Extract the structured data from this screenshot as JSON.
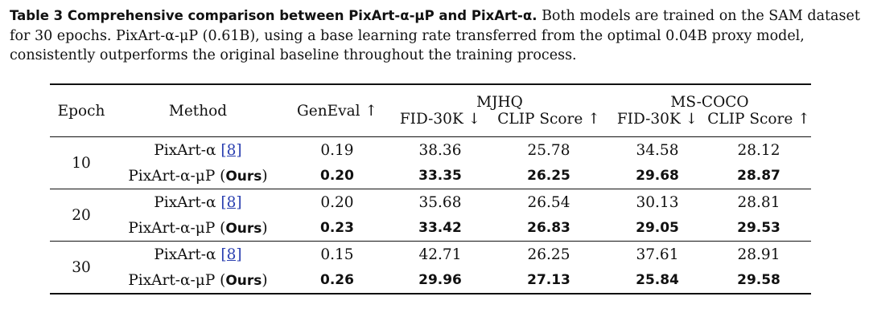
{
  "caption": {
    "label": "Table 3  Comprehensive comparison between PixArt-α-μP and PixArt-α.",
    "text": " Both models are trained on the SAM dataset for 30 epochs. PixArt-α-μP (0.61B), using a base learning rate transferred from the optimal 0.04B proxy model, consistently outperforms the original baseline throughout the training process."
  },
  "table": {
    "headers": {
      "epoch": "Epoch",
      "method": "Method",
      "geneval": "GenEval ↑",
      "mjhq": "MJHQ",
      "mscoco": "MS-COCO",
      "fid_mjhq": "FID-30K ↓",
      "clip_mjhq": "CLIP Score ↑",
      "fid_coco": "FID-30K ↓",
      "clip_coco": "CLIP Score ↑"
    },
    "groups": [
      {
        "epoch": "10",
        "rows": [
          {
            "method": "PixArt-α",
            "ref": "[8]",
            "ours": "",
            "geneval": "0.19",
            "fid_mjhq": "38.36",
            "clip_mjhq": "25.78",
            "fid_coco": "34.58",
            "clip_coco": "28.12"
          },
          {
            "method": "PixArt-α-μP (",
            "ref": "",
            "ours": "Ours",
            "geneval": "0.20",
            "fid_mjhq": "33.35",
            "clip_mjhq": "26.25",
            "fid_coco": "29.68",
            "clip_coco": "28.87"
          }
        ]
      },
      {
        "epoch": "20",
        "rows": [
          {
            "method": "PixArt-α",
            "ref": "[8]",
            "ours": "",
            "geneval": "0.20",
            "fid_mjhq": "35.68",
            "clip_mjhq": "26.54",
            "fid_coco": "30.13",
            "clip_coco": "28.81"
          },
          {
            "method": "PixArt-α-μP (",
            "ref": "",
            "ours": "Ours",
            "geneval": "0.23",
            "fid_mjhq": "33.42",
            "clip_mjhq": "26.83",
            "fid_coco": "29.05",
            "clip_coco": "29.53"
          }
        ]
      },
      {
        "epoch": "30",
        "rows": [
          {
            "method": "PixArt-α",
            "ref": "[8]",
            "ours": "",
            "geneval": "0.15",
            "fid_mjhq": "42.71",
            "clip_mjhq": "26.25",
            "fid_coco": "37.61",
            "clip_coco": "28.91"
          },
          {
            "method": "PixArt-α-μP (",
            "ref": "",
            "ours": "Ours",
            "geneval": "0.26",
            "fid_mjhq": "29.96",
            "clip_mjhq": "27.13",
            "fid_coco": "25.84",
            "clip_coco": "29.58"
          }
        ]
      }
    ]
  }
}
